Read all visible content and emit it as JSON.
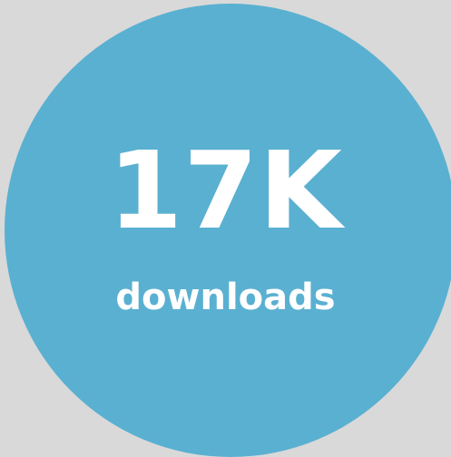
{
  "badge": {
    "value": "17K",
    "label": "downloads",
    "circle_color": "#5ab0d1",
    "background_color": "#d9d9d9",
    "text_color": "#ffffff"
  }
}
